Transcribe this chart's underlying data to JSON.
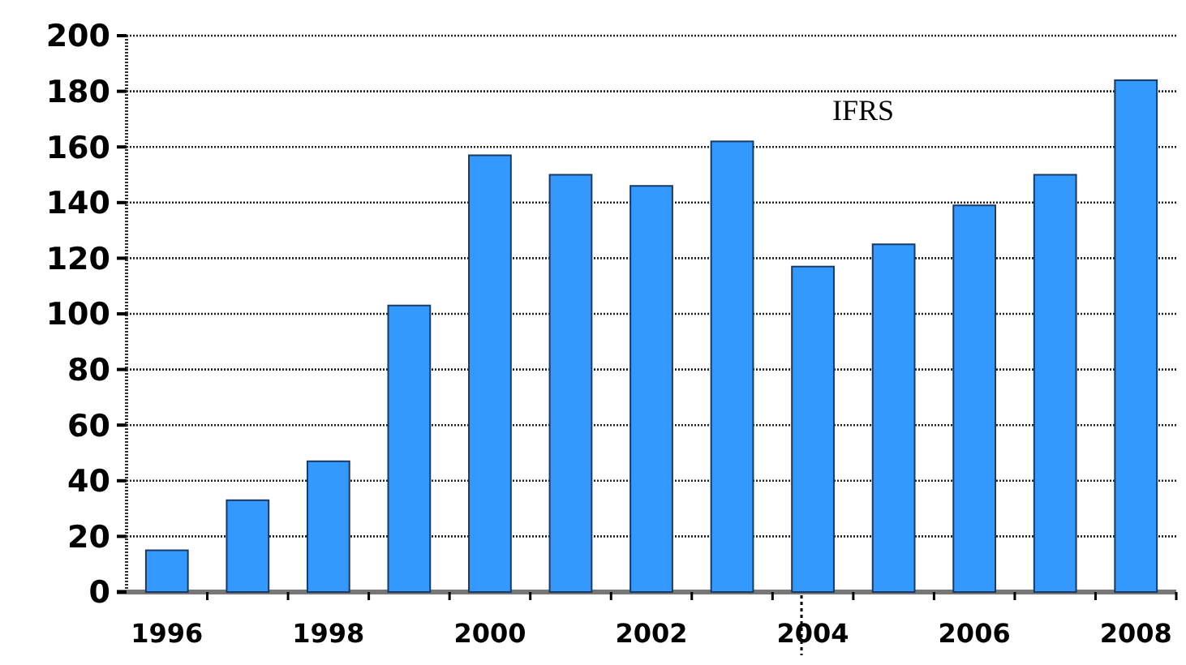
{
  "chart_data": {
    "type": "bar",
    "categories": [
      "1996",
      null,
      "1998",
      null,
      "2000",
      null,
      "2002",
      null,
      "2004",
      null,
      "2006",
      null,
      "2008"
    ],
    "values": [
      15,
      33,
      47,
      103,
      157,
      150,
      146,
      162,
      117,
      125,
      139,
      150,
      184
    ],
    "color": "#3399ff",
    "ylim": [
      0,
      200
    ],
    "yticks": [
      0,
      20,
      40,
      60,
      80,
      100,
      120,
      140,
      160,
      180,
      200
    ],
    "grid": "y",
    "annotations": [
      "IFRS"
    ]
  }
}
